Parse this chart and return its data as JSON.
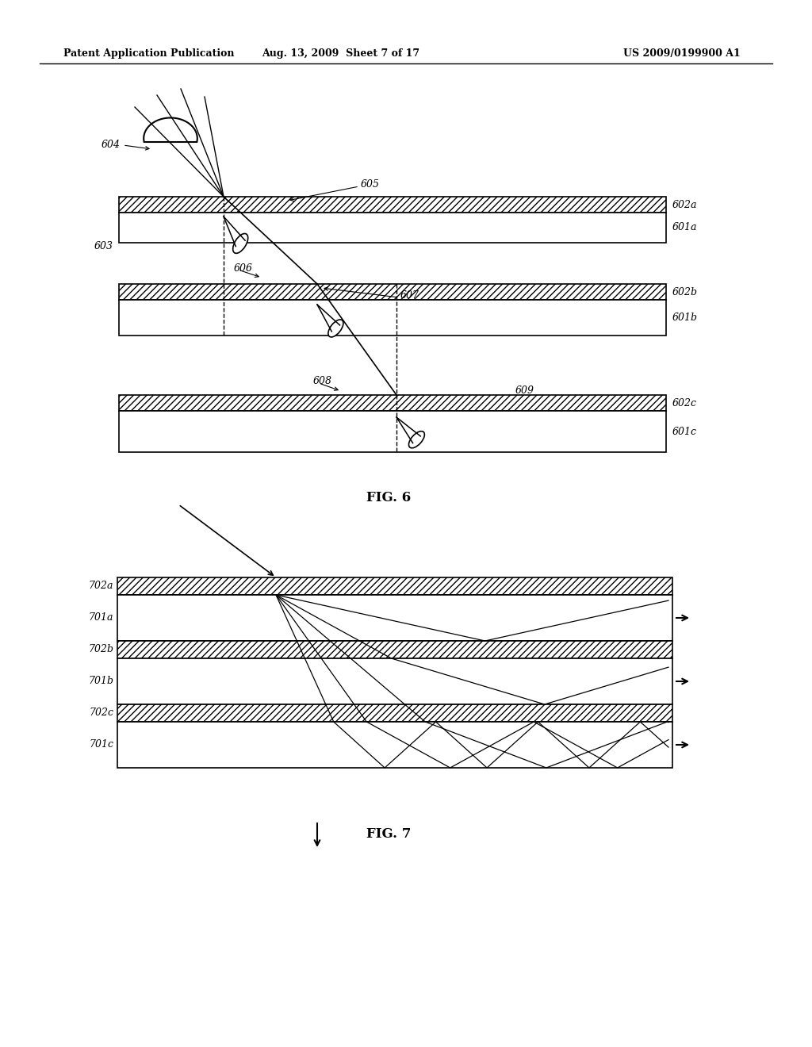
{
  "bg_color": "#ffffff",
  "header_left": "Patent Application Publication",
  "header_mid": "Aug. 13, 2009  Sheet 7 of 17",
  "header_right": "US 2009/0199900 A1",
  "fig6_title": "FIG. 6",
  "fig7_title": "FIG. 7"
}
